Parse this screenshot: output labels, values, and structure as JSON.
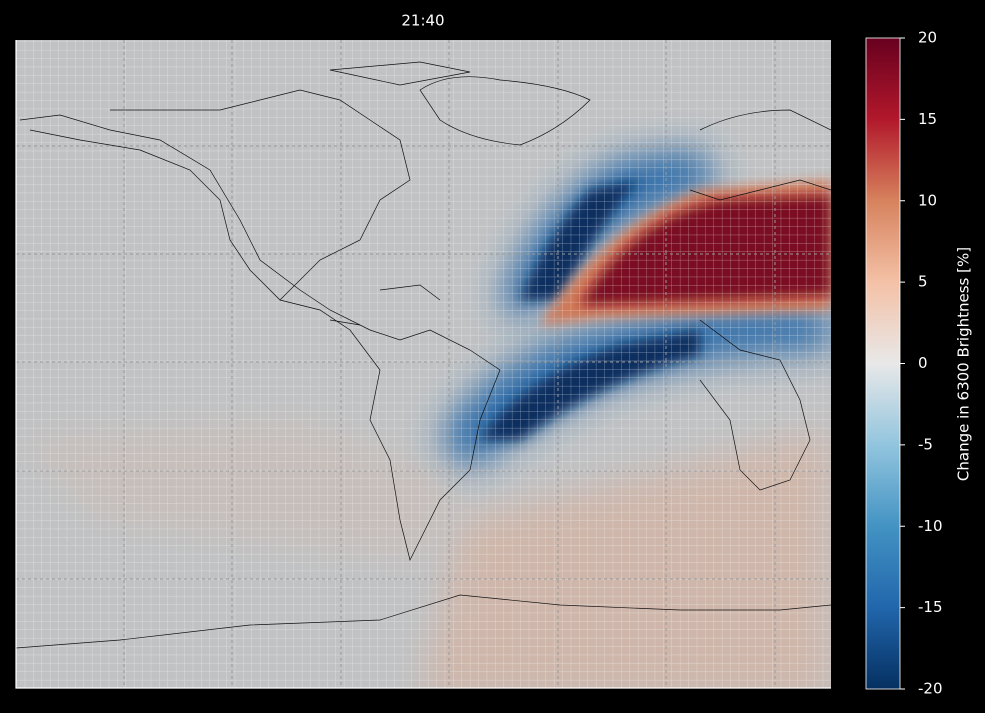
{
  "chart_data": {
    "type": "heatmap",
    "title": "21:40",
    "colorbar": {
      "label": "Change in 6300 Brightness [%]",
      "lim": [
        -20,
        20
      ],
      "ticks": [
        -20,
        -15,
        -10,
        -5,
        0,
        5,
        10,
        15,
        20
      ]
    }
  }
}
